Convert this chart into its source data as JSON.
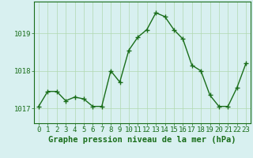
{
  "x": [
    0,
    1,
    2,
    3,
    4,
    5,
    6,
    7,
    8,
    9,
    10,
    11,
    12,
    13,
    14,
    15,
    16,
    17,
    18,
    19,
    20,
    21,
    22,
    23
  ],
  "y": [
    1017.05,
    1017.45,
    1017.45,
    1017.2,
    1017.3,
    1017.25,
    1017.05,
    1017.05,
    1018.0,
    1017.7,
    1018.55,
    1018.9,
    1019.1,
    1019.55,
    1019.45,
    1019.1,
    1018.85,
    1018.15,
    1018.0,
    1017.35,
    1017.05,
    1017.05,
    1017.55,
    1018.2
  ],
  "line_color": "#1a6e1a",
  "marker": "+",
  "background_color": "#d8f0f0",
  "grid_color": "#b0d8b0",
  "xlabel": "Graphe pression niveau de la mer (hPa)",
  "xlabel_color": "#1a6e1a",
  "tick_color": "#1a6e1a",
  "ylabel_ticks": [
    1017,
    1018,
    1019
  ],
  "ylim": [
    1016.6,
    1019.85
  ],
  "xlim": [
    -0.5,
    23.5
  ],
  "xtick_labels": [
    "0",
    "1",
    "2",
    "3",
    "4",
    "5",
    "6",
    "7",
    "8",
    "9",
    "10",
    "11",
    "12",
    "13",
    "14",
    "15",
    "16",
    "17",
    "18",
    "19",
    "20",
    "21",
    "22",
    "23"
  ],
  "axis_label_fontsize": 6.5,
  "xlabel_fontsize": 7.5,
  "linewidth": 1.0,
  "markersize": 4.0
}
